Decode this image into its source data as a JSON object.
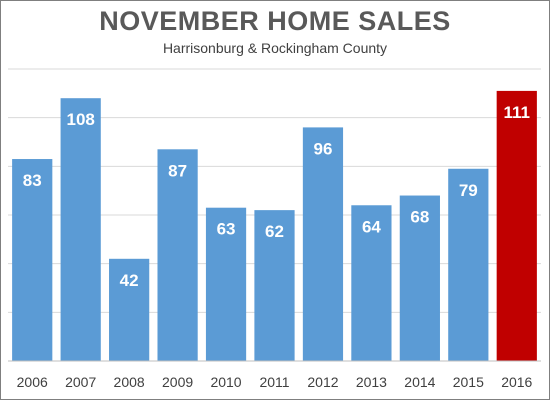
{
  "chart_data": {
    "type": "bar",
    "title": "NOVEMBER HOME SALES",
    "subtitle": "Harrisonburg & Rockingham County",
    "categories": [
      "2006",
      "2007",
      "2008",
      "2009",
      "2010",
      "2011",
      "2012",
      "2013",
      "2014",
      "2015",
      "2016"
    ],
    "values": [
      83,
      108,
      42,
      87,
      63,
      62,
      96,
      64,
      68,
      79,
      111
    ],
    "ylim": [
      0,
      120
    ],
    "grid": true,
    "colors": {
      "bar": "#5b9bd5",
      "highlight": "#c00000",
      "highlight_category": "2016",
      "grid": "#d9d9d9",
      "axis": "#bfbfbf"
    }
  }
}
